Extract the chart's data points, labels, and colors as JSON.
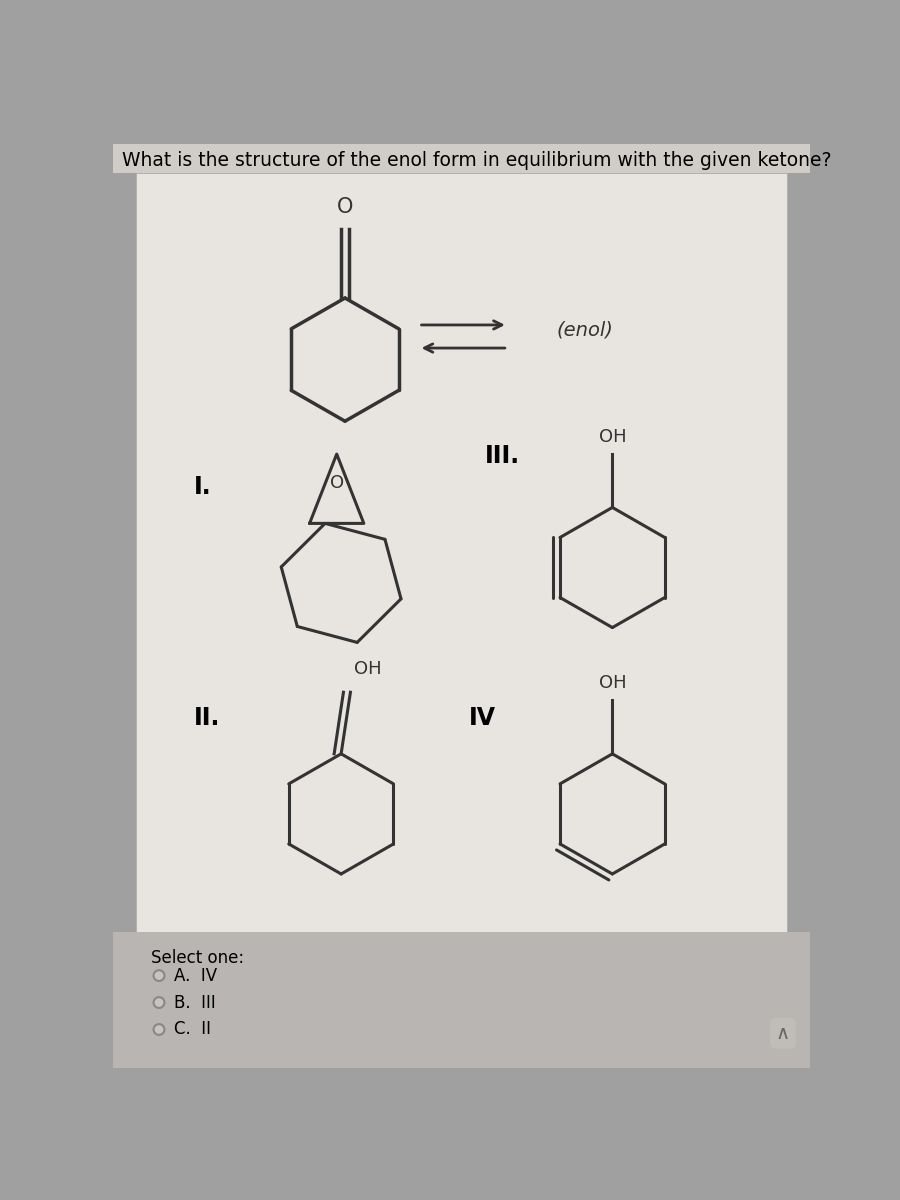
{
  "title": "What is the structure of the enol form in equilibrium with the given ketone?",
  "outer_bg": "#a0a0a0",
  "panel_color": "#e8e5e0",
  "bottom_bg": "#b8b5b2",
  "text_color": "#000000",
  "title_fontsize": 13.5,
  "select_text": "Select one:",
  "options": [
    "A.  IV",
    "B.  III",
    "C.  II"
  ],
  "label_I": "I.",
  "label_II": "II.",
  "label_III": "III.",
  "label_IV": "IV",
  "enol_label": "(enol)"
}
